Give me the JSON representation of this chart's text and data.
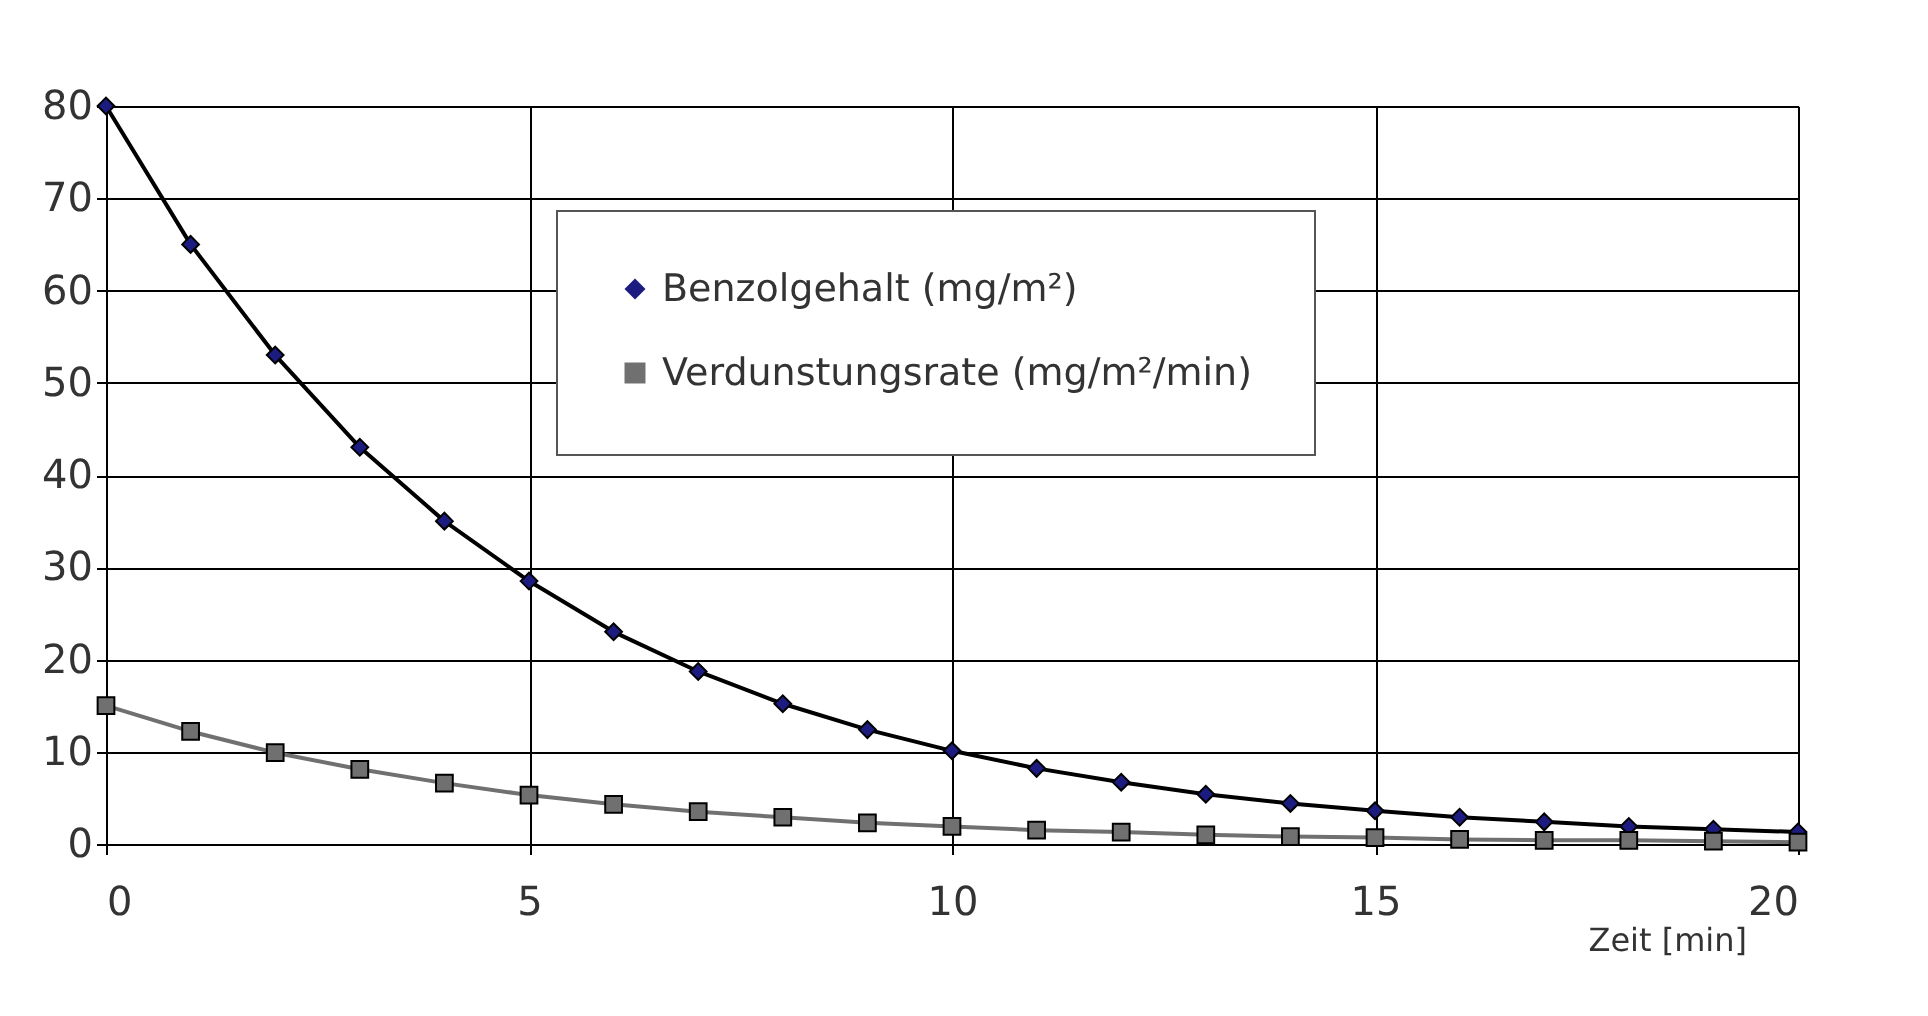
{
  "chart_data": {
    "type": "line",
    "xlabel": "Zeit [min]",
    "x": [
      0,
      1,
      2,
      3,
      4,
      5,
      6,
      7,
      8,
      9,
      10,
      11,
      12,
      13,
      14,
      15,
      16,
      17,
      18,
      19,
      20
    ],
    "series": [
      {
        "name": "Benzolgehalt (mg/m²)",
        "color": "#1c1c80",
        "marker": "diamond",
        "values": [
          80,
          65,
          53,
          43,
          35,
          28.5,
          23,
          18.7,
          15.2,
          12.4,
          10.1,
          8.2,
          6.7,
          5.4,
          4.4,
          3.6,
          2.9,
          2.4,
          1.9,
          1.6,
          1.3
        ]
      },
      {
        "name": "Verdunstungsrate (mg/m²/min)",
        "color": "#707070",
        "marker": "square",
        "values": [
          15,
          12.2,
          9.9,
          8.1,
          6.6,
          5.3,
          4.3,
          3.5,
          2.9,
          2.3,
          1.9,
          1.5,
          1.3,
          1.0,
          0.8,
          0.7,
          0.5,
          0.4,
          0.4,
          0.3,
          0.2
        ]
      }
    ],
    "xlim": [
      0,
      20
    ],
    "xticks": [
      0,
      5,
      10,
      15,
      20
    ],
    "ylim": [
      0,
      80
    ],
    "yticks": [
      0,
      10,
      20,
      30,
      40,
      50,
      60,
      70,
      80
    ],
    "grid": true,
    "legend": "top right",
    "line_style": "solid"
  }
}
